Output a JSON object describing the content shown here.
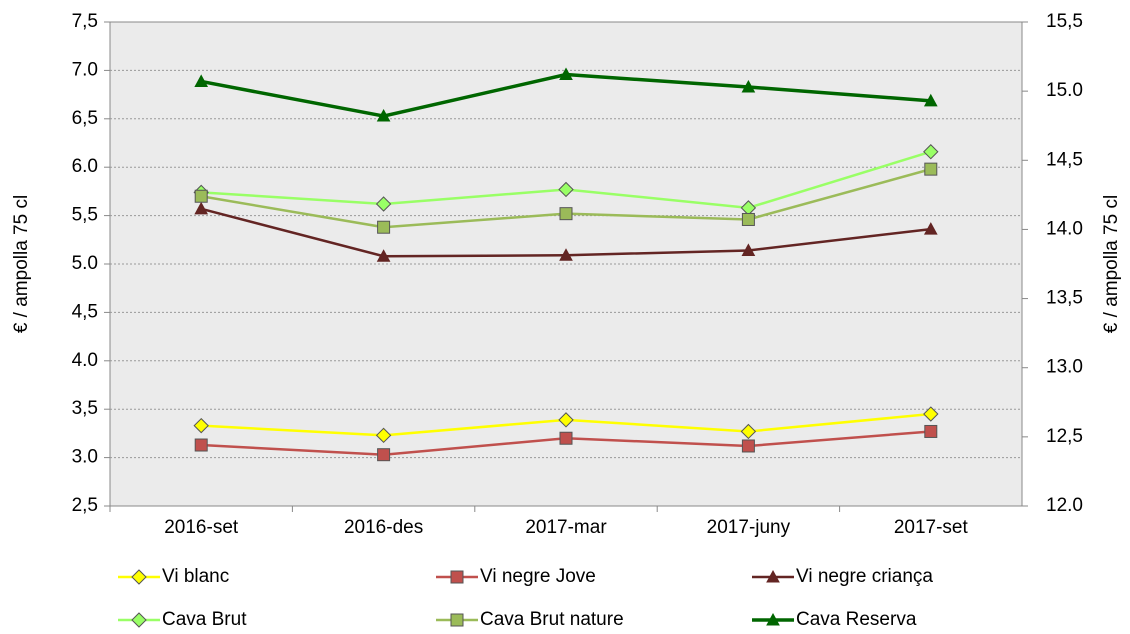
{
  "chart_data": {
    "type": "line",
    "categories": [
      "2016-set",
      "2016-des",
      "2017-mar",
      "2017-juny",
      "2017-set"
    ],
    "ylabel": "€ / ampolla 75 cl",
    "y2label": "€ / ampolla 75 cl",
    "ylim": [
      2.5,
      7.5
    ],
    "yticks": [
      {
        "value": 2.5,
        "label": "2,5"
      },
      {
        "value": 3.0,
        "label": "3.0"
      },
      {
        "value": 3.5,
        "label": "3,5"
      },
      {
        "value": 4.0,
        "label": "4.0"
      },
      {
        "value": 4.5,
        "label": "4,5"
      },
      {
        "value": 5.0,
        "label": "5.0"
      },
      {
        "value": 5.5,
        "label": "5,5"
      },
      {
        "value": 6.0,
        "label": "6.0"
      },
      {
        "value": 6.5,
        "label": "6,5"
      },
      {
        "value": 7.0,
        "label": "7.0"
      },
      {
        "value": 7.5,
        "label": "7,5"
      }
    ],
    "y2lim": [
      12.0,
      15.5
    ],
    "y2ticks": [
      {
        "value": 12.0,
        "label": "12.0"
      },
      {
        "value": 12.5,
        "label": "12,5"
      },
      {
        "value": 13.0,
        "label": "13.0"
      },
      {
        "value": 13.5,
        "label": "13,5"
      },
      {
        "value": 14.0,
        "label": "14.0"
      },
      {
        "value": 14.5,
        "label": "14,5"
      },
      {
        "value": 15.0,
        "label": "15.0"
      },
      {
        "value": 15.5,
        "label": "15,5"
      }
    ],
    "grid": true,
    "legend": "bottom",
    "series": [
      {
        "name": "Vi blanc",
        "color": "#ffff00",
        "marker": "diamond",
        "values": [
          3.33,
          3.23,
          3.39,
          3.27,
          3.45
        ]
      },
      {
        "name": "Vi negre Jove",
        "color": "#c0504d",
        "marker": "square",
        "values": [
          3.13,
          3.03,
          3.2,
          3.12,
          3.27
        ]
      },
      {
        "name": "Vi negre criança",
        "color": "#632523",
        "marker": "triangle",
        "values": [
          5.57,
          5.08,
          5.09,
          5.14,
          5.36
        ]
      },
      {
        "name": "Cava Brut",
        "color": "#99ff66",
        "marker": "diamond",
        "values": [
          5.74,
          5.62,
          5.77,
          5.58,
          6.16
        ]
      },
      {
        "name": "Cava Brut nature",
        "color": "#9bbb59",
        "marker": "square",
        "values": [
          5.7,
          5.38,
          5.52,
          5.46,
          5.98
        ]
      },
      {
        "name": "Cava Reserva",
        "color": "#006600",
        "marker": "triangle",
        "axis": "y2",
        "values": [
          15.07,
          14.82,
          15.12,
          15.03,
          14.93
        ]
      }
    ]
  }
}
